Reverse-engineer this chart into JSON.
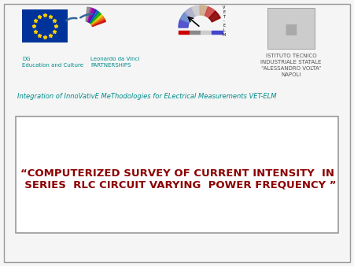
{
  "bg_color": "#f5f5f5",
  "outer_border_color": "#999999",
  "title_text": "“COMPUTERIZED SURVEY OF CURRENT INTENSITY  IN\n  SERIES  RLC CIRCUIT VARYING  POWER FREQUENCY ”",
  "title_color": "#8b0000",
  "title_fontsize": 9.5,
  "subtitle_text": "Integration of InnoVativE MeThodologies for ELectrical Measurements VET-ELM",
  "subtitle_color": "#008b8b",
  "subtitle_fontsize": 6.0,
  "dg_text": "DG\nEducation and Culture",
  "dg_color": "#008b8b",
  "dg_fontsize": 5.0,
  "leo_text": "Leonardo da Vinci\nPARTNERSHIPS",
  "leo_color": "#008b8b",
  "leo_fontsize": 5.0,
  "istituto_text": "ISTITUTO TECNICO\nINDUSTRIALE STATALE\n“ALESSANDRO VOLTA”\nNAPOLI",
  "istituto_color": "#555555",
  "istituto_fontsize": 5.0,
  "box_border_color": "#999999",
  "box_facecolor": "#ffffff",
  "eu_flag_color": "#003399",
  "eu_star_color": "#ffcc00"
}
